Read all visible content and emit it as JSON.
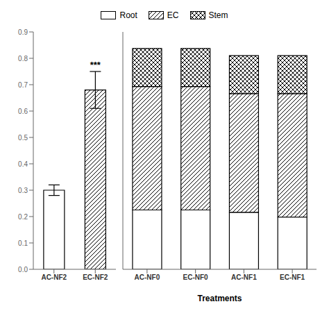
{
  "chart_data": [
    {
      "type": "bar",
      "categories": [
        "AC-NF2",
        "EC-NF2"
      ],
      "series": [
        {
          "name": "Root",
          "values": [
            0.3,
            null
          ],
          "errors": [
            0.02,
            null
          ]
        },
        {
          "name": "EC",
          "values": [
            null,
            0.68
          ],
          "errors": [
            null,
            0.07
          ]
        }
      ],
      "color": "#ffffff",
      "ylim": [
        0,
        0.9
      ],
      "yticks": [
        {
          "value": 0,
          "label": "0.0"
        },
        0.1,
        0.2,
        0.3,
        0.4,
        0.5,
        0.6,
        0.7,
        0.8,
        0.9
      ],
      "annotations": [
        {
          "category": "EC-NF2",
          "text": "***"
        }
      ],
      "grid": false
    },
    {
      "type": "bar",
      "xlabel": "Treatments",
      "categories": [
        "AC-NF0",
        "EC-NF0",
        "AC-NF1",
        "EC-NF1"
      ],
      "series": [
        {
          "name": "Root",
          "values": [
            0.25,
            0.25,
            0.24,
            0.22
          ]
        },
        {
          "name": "EC",
          "values": [
            0.52,
            0.52,
            0.5,
            0.52
          ]
        },
        {
          "name": "Stem",
          "values": [
            0.16,
            0.16,
            0.16,
            0.16
          ]
        }
      ],
      "stacked": true,
      "color": "#ffffff",
      "ylim": [
        0,
        1.0
      ],
      "tick_labels": "x",
      "legend": "top",
      "grid": false
    }
  ]
}
